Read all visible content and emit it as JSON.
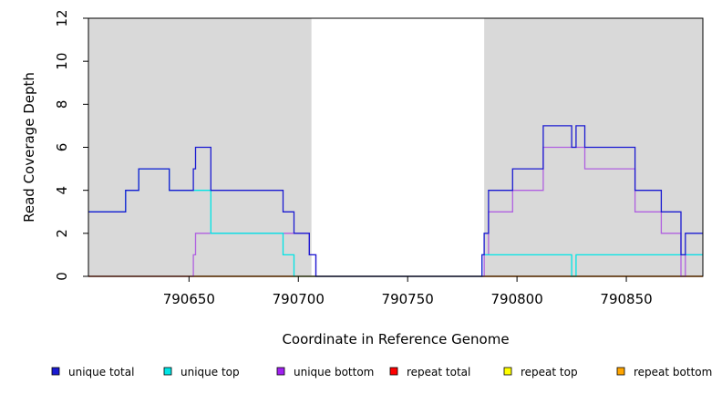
{
  "chart_data": {
    "type": "line",
    "step": true,
    "xlabel": "Coordinate in Reference Genome",
    "ylabel": "Read Coverage Depth",
    "xlim": [
      790604,
      790885
    ],
    "ylim": [
      0,
      12
    ],
    "x_ticks": [
      790650,
      790700,
      790750,
      790800,
      790850
    ],
    "x_tick_labels": [
      "790650",
      "790700",
      "790750",
      "790800",
      "790850"
    ],
    "y_ticks": [
      0,
      2,
      4,
      6,
      8,
      10,
      12
    ],
    "y_tick_labels": [
      "0",
      "2",
      "4",
      "6",
      "8",
      "10",
      "12"
    ],
    "shaded_regions": [
      [
        790604,
        790706
      ],
      [
        790785,
        790885
      ]
    ],
    "shade_color": "#d9d9d9",
    "series": [
      {
        "name": "unique total",
        "color": "#1a1ad1",
        "points": [
          [
            790604,
            3
          ],
          [
            790621,
            3
          ],
          [
            790621,
            4
          ],
          [
            790627,
            4
          ],
          [
            790627,
            5
          ],
          [
            790641,
            5
          ],
          [
            790641,
            4
          ],
          [
            790652,
            4
          ],
          [
            790652,
            5
          ],
          [
            790653,
            5
          ],
          [
            790653,
            6
          ],
          [
            790660,
            6
          ],
          [
            790660,
            4
          ],
          [
            790693,
            4
          ],
          [
            790693,
            3
          ],
          [
            790698,
            3
          ],
          [
            790698,
            2
          ],
          [
            790705,
            2
          ],
          [
            790705,
            1
          ],
          [
            790708,
            1
          ],
          [
            790708,
            0
          ],
          [
            790784,
            0
          ],
          [
            790784,
            1
          ],
          [
            790785,
            1
          ],
          [
            790785,
            2
          ],
          [
            790787,
            2
          ],
          [
            790787,
            4
          ],
          [
            790798,
            4
          ],
          [
            790798,
            5
          ],
          [
            790812,
            5
          ],
          [
            790812,
            7
          ],
          [
            790825,
            7
          ],
          [
            790825,
            6
          ],
          [
            790827,
            6
          ],
          [
            790827,
            7
          ],
          [
            790831,
            7
          ],
          [
            790831,
            6
          ],
          [
            790854,
            6
          ],
          [
            790854,
            4
          ],
          [
            790866,
            4
          ],
          [
            790866,
            3
          ],
          [
            790875,
            3
          ],
          [
            790875,
            1
          ],
          [
            790877,
            1
          ],
          [
            790877,
            2
          ],
          [
            790885,
            2
          ]
        ]
      },
      {
        "name": "unique top",
        "color": "#00e5e5",
        "points": [
          [
            790604,
            3
          ],
          [
            790621,
            3
          ],
          [
            790621,
            4
          ],
          [
            790627,
            4
          ],
          [
            790627,
            5
          ],
          [
            790641,
            5
          ],
          [
            790641,
            4
          ],
          [
            790660,
            4
          ],
          [
            790660,
            2
          ],
          [
            790693,
            2
          ],
          [
            790693,
            1
          ],
          [
            790698,
            1
          ],
          [
            790698,
            0
          ],
          [
            790784,
            0
          ],
          [
            790784,
            1
          ],
          [
            790825,
            1
          ],
          [
            790825,
            0
          ],
          [
            790827,
            0
          ],
          [
            790827,
            1
          ],
          [
            790885,
            1
          ]
        ]
      },
      {
        "name": "unique bottom",
        "color": "#b060e0",
        "points": [
          [
            790604,
            0
          ],
          [
            790652,
            0
          ],
          [
            790652,
            1
          ],
          [
            790653,
            1
          ],
          [
            790653,
            2
          ],
          [
            790693,
            2
          ],
          [
            790698,
            2
          ],
          [
            790698,
            2
          ],
          [
            790705,
            2
          ],
          [
            790705,
            1
          ],
          [
            790708,
            1
          ],
          [
            790708,
            0
          ],
          [
            790785,
            0
          ],
          [
            790785,
            1
          ],
          [
            790787,
            1
          ],
          [
            790787,
            3
          ],
          [
            790798,
            3
          ],
          [
            790798,
            4
          ],
          [
            790812,
            4
          ],
          [
            790812,
            6
          ],
          [
            790831,
            6
          ],
          [
            790831,
            5
          ],
          [
            790854,
            5
          ],
          [
            790854,
            3
          ],
          [
            790866,
            3
          ],
          [
            790866,
            2
          ],
          [
            790875,
            2
          ],
          [
            790875,
            0
          ],
          [
            790877,
            0
          ],
          [
            790877,
            1
          ],
          [
            790885,
            1
          ]
        ]
      },
      {
        "name": "repeat total",
        "color": "#e00000",
        "points": [
          [
            790604,
            0
          ],
          [
            790885,
            0
          ]
        ]
      },
      {
        "name": "repeat top",
        "color": "#f0f000",
        "points": [
          [
            790604,
            0
          ],
          [
            790885,
            0
          ]
        ]
      },
      {
        "name": "repeat bottom",
        "color": "#f0a000",
        "points": [
          [
            790604,
            0
          ],
          [
            790885,
            0
          ]
        ]
      }
    ],
    "legend": {
      "placement": "bottom",
      "entries": [
        {
          "label": "unique total",
          "color": "#1a1ad1"
        },
        {
          "label": "unique top",
          "color": "#00e5e5"
        },
        {
          "label": "unique bottom",
          "color": "#a020f0"
        },
        {
          "label": "repeat total",
          "color": "#ff0000"
        },
        {
          "label": "repeat top",
          "color": "#ffff00"
        },
        {
          "label": "repeat bottom",
          "color": "#ffa500"
        }
      ]
    }
  }
}
